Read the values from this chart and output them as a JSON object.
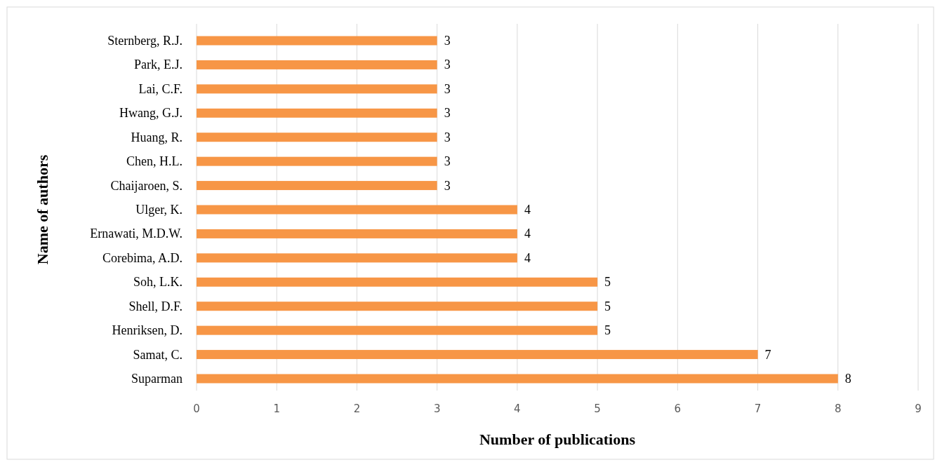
{
  "chart_data": {
    "type": "bar",
    "orientation": "horizontal",
    "xlabel": "Number of publications",
    "ylabel": "Name of authors",
    "categories": [
      "Sternberg, R.J.",
      "Park, E.J.",
      "Lai, C.F.",
      "Hwang, G.J.",
      "Huang, R.",
      "Chen, H.L.",
      "Chaijaroen, S.",
      "Ulger, K.",
      "Ernawati, M.D.W.",
      "Corebima, A.D.",
      "Soh, L.K.",
      "Shell, D.F.",
      "Henriksen, D.",
      "Samat, C.",
      "Suparman"
    ],
    "values": [
      3,
      3,
      3,
      3,
      3,
      3,
      3,
      4,
      4,
      4,
      5,
      5,
      5,
      7,
      8
    ],
    "color": "#f79646",
    "xlim": [
      0,
      9
    ],
    "xticks": [
      0,
      1,
      2,
      3,
      4,
      5,
      6,
      7,
      8,
      9
    ],
    "grid": "x",
    "data_labels": true
  }
}
